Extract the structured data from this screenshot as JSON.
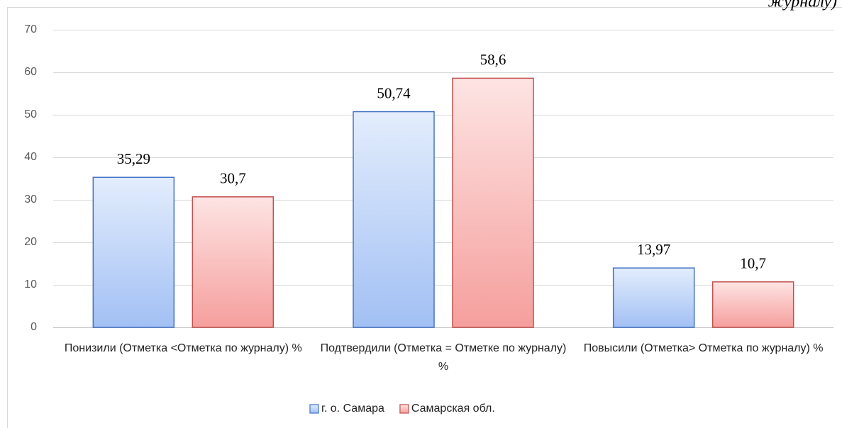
{
  "chart_data": {
    "type": "bar",
    "annotation": "журналу)",
    "categories": [
      "Понизили (Отметка <Отметка по журналу) %",
      "Подтвердили (Отметка = Отметке по журналу) %",
      "Повысили (Отметка> Отметка по журналу) %"
    ],
    "series": [
      {
        "name": "г. о. Самара",
        "color": "#4472c4",
        "gradient": [
          "#e3edfc",
          "#a2c0f4"
        ],
        "values": [
          35.29,
          50.74,
          13.97
        ],
        "value_labels": [
          "35,29",
          "50,74",
          "13,97"
        ]
      },
      {
        "name": "Самарская обл.",
        "color": "#c0504d",
        "gradient": [
          "#fde4e3",
          "#f59f9d"
        ],
        "values": [
          30.7,
          58.6,
          10.7
        ],
        "value_labels": [
          "30,7",
          "58,6",
          "10,7"
        ]
      }
    ],
    "ylim": [
      0,
      70
    ],
    "yticks": [
      0,
      10,
      20,
      30,
      40,
      50,
      60,
      70
    ],
    "grid": true,
    "legend": "bottom"
  }
}
